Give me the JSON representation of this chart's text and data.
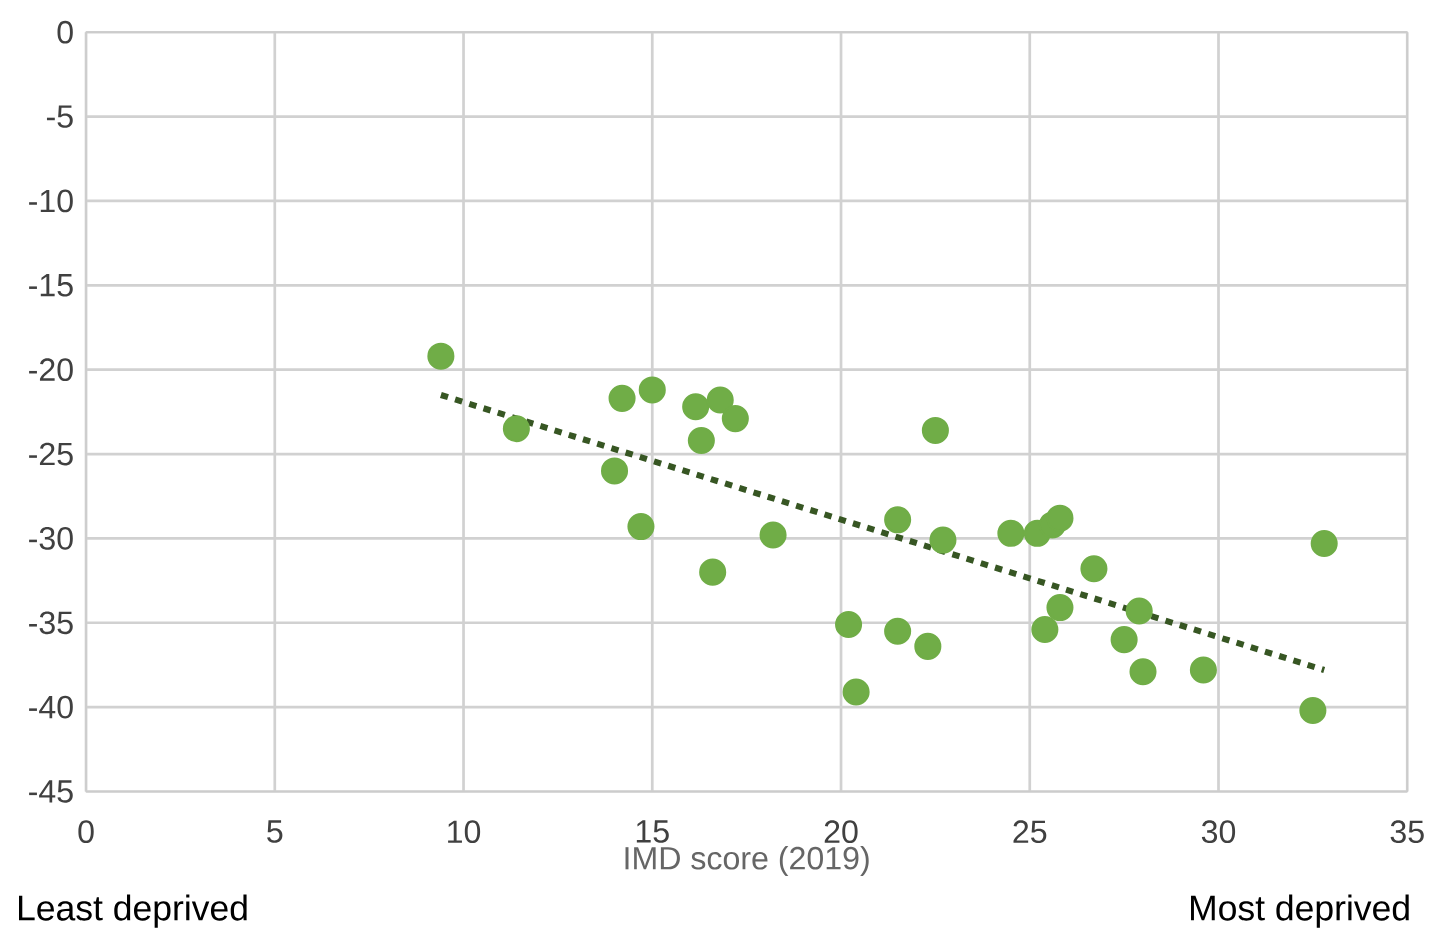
{
  "chart_data": {
    "type": "scatter",
    "xlabel": "IMD score (2019)",
    "xlim": [
      0,
      35
    ],
    "xticks": [
      0,
      5,
      10,
      15,
      20,
      25,
      30,
      35
    ],
    "ylim": [
      -45,
      0
    ],
    "yticks": [
      -45,
      -40,
      -35,
      -30,
      -25,
      -20,
      -15,
      -10,
      -5,
      0
    ],
    "grid": true,
    "annotations": [
      "Least deprived",
      "Most deprived"
    ],
    "series": [
      {
        "type": "scatter",
        "marker": "circle",
        "color": "#70ad47",
        "x": [
          9.4,
          11.4,
          14.0,
          14.2,
          14.7,
          15.0,
          16.15,
          16.3,
          16.6,
          16.8,
          17.2,
          18.2,
          20.2,
          20.4,
          21.5,
          21.5,
          22.3,
          22.5,
          22.7,
          24.5,
          25.2,
          25.4,
          25.6,
          25.8,
          25.8,
          26.7,
          27.5,
          27.9,
          28.0,
          29.6,
          32.5,
          32.8
        ],
        "values": [
          -19.2,
          -23.5,
          -26.0,
          -21.7,
          -29.3,
          -21.2,
          -22.2,
          -24.2,
          -32.0,
          -21.8,
          -22.9,
          -29.8,
          -35.1,
          -39.1,
          -28.9,
          -35.5,
          -36.4,
          -23.6,
          -30.1,
          -29.7,
          -29.7,
          -35.4,
          -29.2,
          -28.8,
          -34.1,
          -31.8,
          -36.0,
          -34.3,
          -37.9,
          -37.8,
          -40.2,
          -30.3
        ]
      },
      {
        "type": "line",
        "color": "#375623",
        "x": [
          9.4,
          32.8
        ],
        "values": [
          -21.5,
          -37.8
        ],
        "line_style": "dotted",
        "marker": "none"
      }
    ]
  }
}
